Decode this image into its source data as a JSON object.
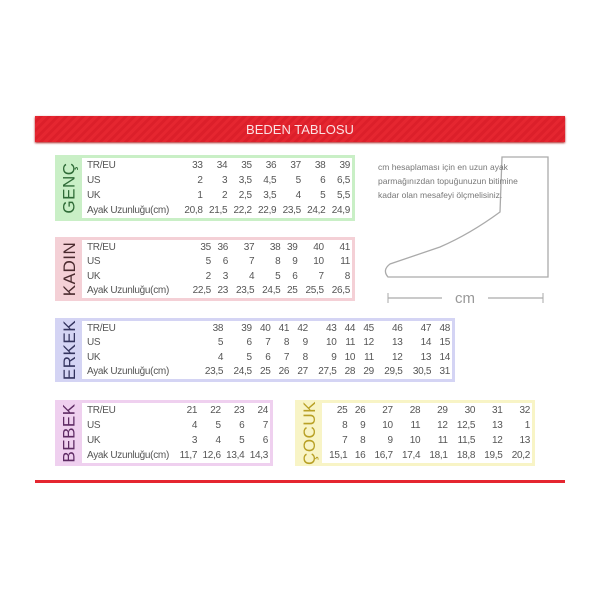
{
  "title": "BEDEN TABLOSU",
  "colors": {
    "accent": "#e52630"
  },
  "row_labels": [
    "TR/EU",
    "US",
    "UK",
    "Ayak Uzunluğu(cm)"
  ],
  "tables": [
    {
      "id": "genc",
      "name": "GENÇ",
      "bg": "#c9efc6",
      "text": "#2f6b37",
      "rows": [
        [
          "33",
          "34",
          "35",
          "36",
          "37",
          "38",
          "39"
        ],
        [
          "2",
          "3",
          "3,5",
          "4,5",
          "5",
          "6",
          "6,5"
        ],
        [
          "1",
          "2",
          "2,5",
          "3,5",
          "4",
          "5",
          "5,5"
        ],
        [
          "20,8",
          "21,5",
          "22,2",
          "22,9",
          "23,5",
          "24,2",
          "24,9"
        ]
      ]
    },
    {
      "id": "kadin",
      "name": "KADIN",
      "bg": "#f4d0d6",
      "text": "#4a2a2e",
      "rows": [
        [
          "35",
          "36",
          "37",
          "38",
          "39",
          "40",
          "41"
        ],
        [
          "5",
          "6",
          "7",
          "8",
          "9",
          "10",
          "11"
        ],
        [
          "2",
          "3",
          "4",
          "5",
          "6",
          "7",
          "8"
        ],
        [
          "22,5",
          "23",
          "23,5",
          "24,5",
          "25",
          "25,5",
          "26,5"
        ]
      ]
    },
    {
      "id": "erkek",
      "name": "ERKEK",
      "bg": "#d4d4f4",
      "text": "#33335e",
      "rows": [
        [
          "38",
          "39",
          "40",
          "41",
          "42",
          "43",
          "44",
          "45",
          "46",
          "47",
          "48"
        ],
        [
          "5",
          "6",
          "7",
          "8",
          "9",
          "10",
          "11",
          "12",
          "13",
          "14",
          "15"
        ],
        [
          "4",
          "5",
          "6",
          "7",
          "8",
          "9",
          "10",
          "11",
          "12",
          "13",
          "14"
        ],
        [
          "23,5",
          "24,5",
          "25",
          "26",
          "27",
          "27,5",
          "28",
          "29",
          "29,5",
          "30,5",
          "31"
        ]
      ]
    },
    {
      "id": "bebek",
      "name": "BEBEK",
      "bg": "#efd0ef",
      "text": "#5e2a63",
      "rows": [
        [
          "21",
          "22",
          "23",
          "24"
        ],
        [
          "4",
          "5",
          "6",
          "7"
        ],
        [
          "3",
          "4",
          "5",
          "6"
        ],
        [
          "11,7",
          "12,6",
          "13,4",
          "14,3"
        ]
      ]
    },
    {
      "id": "cocuk",
      "name": "ÇOCUK",
      "bg": "#f8f4c6",
      "text": "#b8a025",
      "no_row_labels": true,
      "rows": [
        [
          "25",
          "26",
          "27",
          "28",
          "29",
          "30",
          "31",
          "32"
        ],
        [
          "8",
          "9",
          "10",
          "11",
          "12",
          "12,5",
          "13",
          "1"
        ],
        [
          "7",
          "8",
          "9",
          "10",
          "11",
          "11,5",
          "12",
          "13"
        ],
        [
          "15,1",
          "16",
          "16,7",
          "17,4",
          "18,1",
          "18,8",
          "19,5",
          "20,2"
        ]
      ]
    }
  ],
  "note": "cm hesaplaması için en uzun ayak parmağınızdan topuğunuzun bitimine kadar olan mesafeyi ölçmelisiniz.",
  "foot_unit": "cm"
}
